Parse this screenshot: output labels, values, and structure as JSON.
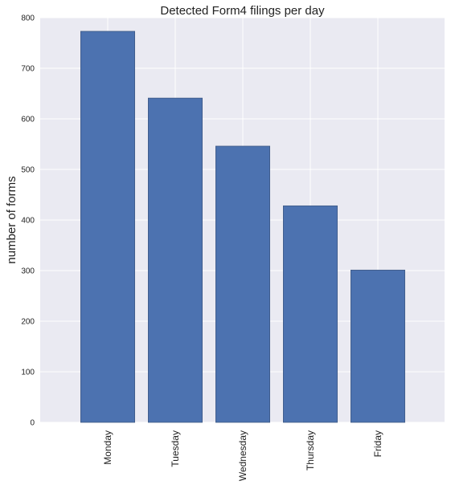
{
  "chart_data": {
    "type": "bar",
    "title": "Detected Form4 filings per day",
    "xlabel": "",
    "ylabel": "number of forms",
    "categories": [
      "Monday",
      "Tuesday",
      "Wednesday",
      "Thursday",
      "Friday"
    ],
    "values": [
      773,
      641,
      546,
      428,
      301
    ],
    "ylim": [
      0,
      800
    ],
    "yticks": [
      0,
      100,
      200,
      300,
      400,
      500,
      600,
      700,
      800
    ],
    "grid": true,
    "legend": "none",
    "bar_color": "#4C72B0",
    "background_color": "#EAEAF2",
    "grid_color": "#FFFFFF"
  }
}
